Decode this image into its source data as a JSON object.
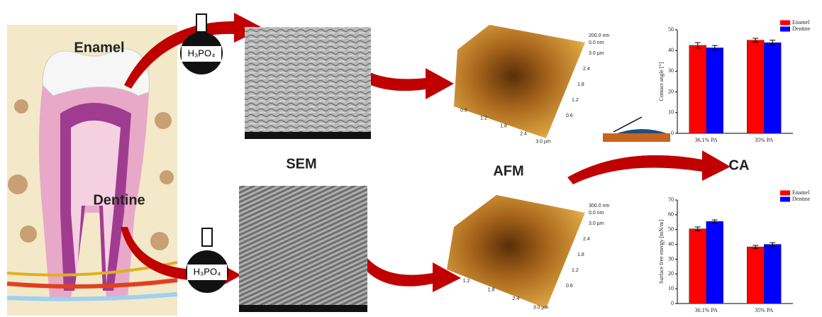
{
  "labels": {
    "enamel": "Enamel",
    "dentine": "Dentine",
    "sem": "SEM",
    "afm": "AFM",
    "ca": "CA",
    "acid_top": "H₃PO₄",
    "acid_bottom": "H₃PO₄"
  },
  "afm_top": {
    "z_labels": [
      "200.0 nm",
      "0.0 nm"
    ],
    "x_ticks": [
      "0.6",
      "1.2",
      "1.8",
      "2.4",
      "3.0 µm"
    ],
    "y_ticks": [
      "3.0 µm",
      "2.4",
      "1.8",
      "1.2",
      "0.6"
    ]
  },
  "afm_bottom": {
    "z_labels": [
      "300.0 nm",
      "0.0 nm"
    ],
    "x_ticks": [
      "1.2",
      "1.8",
      "2.4",
      "3.0 µm"
    ],
    "y_ticks": [
      "3.0 µm",
      "2.4",
      "1.8",
      "1.2",
      "0.6"
    ]
  },
  "chart_data": [
    {
      "type": "bar",
      "y_label": "Contact angle [°]",
      "categories": [
        "36.1% PA",
        "35% PA"
      ],
      "series": [
        {
          "name": "Enamel",
          "color": "#ff0000",
          "values": [
            42.5,
            45
          ],
          "errors": [
            1.3,
            0.9
          ]
        },
        {
          "name": "Dentine",
          "color": "#0000ff",
          "values": [
            41.3,
            43.8
          ],
          "errors": [
            1.1,
            1.2
          ]
        }
      ],
      "ylim": [
        0,
        50
      ],
      "yticks": [
        0,
        10,
        20,
        30,
        40,
        50
      ]
    },
    {
      "type": "bar",
      "y_label": "Surface free energy [mN/m]",
      "categories": [
        "36.1% PA",
        "35% PA"
      ],
      "series": [
        {
          "name": "Enamel",
          "color": "#ff0000",
          "values": [
            50.5,
            38.3
          ],
          "errors": [
            1.3,
            1.0
          ]
        },
        {
          "name": "Dentine",
          "color": "#0000ff",
          "values": [
            55.5,
            40
          ],
          "errors": [
            1.0,
            1.2
          ]
        }
      ],
      "ylim": [
        0,
        70
      ],
      "yticks": [
        0,
        10,
        20,
        30,
        40,
        50,
        60,
        70
      ]
    }
  ]
}
